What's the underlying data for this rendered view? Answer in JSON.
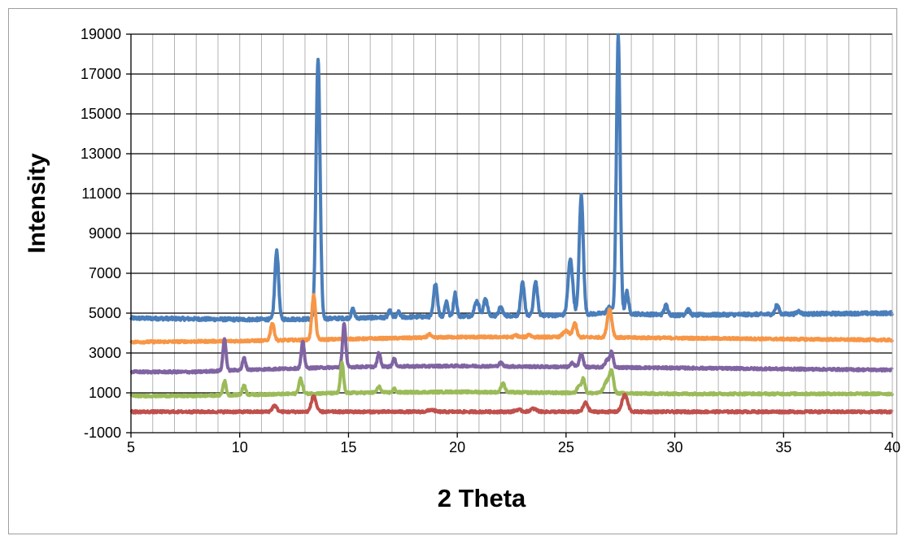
{
  "chart_data": {
    "type": "line",
    "title": "",
    "xlabel": "2 Theta",
    "ylabel": "Intensity",
    "xlim": [
      5,
      40
    ],
    "ylim": [
      -1000,
      19000
    ],
    "x_ticks": [
      5,
      10,
      15,
      20,
      25,
      30,
      35,
      40
    ],
    "y_ticks": [
      -1000,
      1000,
      3000,
      5000,
      7000,
      9000,
      11000,
      13000,
      15000,
      17000,
      19000
    ],
    "x_minor_step": 1,
    "grid": {
      "x_minor": true,
      "y_major": true
    },
    "legend": "none",
    "series": [
      {
        "color": "#4a7ebb",
        "baseline": [
          [
            5,
            4750
          ],
          [
            10,
            4680
          ],
          [
            13,
            4700
          ],
          [
            15,
            4750
          ],
          [
            20,
            4850
          ],
          [
            25,
            4900
          ],
          [
            27,
            5000
          ],
          [
            30,
            4900
          ],
          [
            35,
            4950
          ],
          [
            40,
            5000
          ]
        ],
        "peaks": [
          [
            11.7,
            8150,
            0.12
          ],
          [
            13.6,
            17750,
            0.13
          ],
          [
            15.2,
            5200,
            0.1
          ],
          [
            16.9,
            5100,
            0.1
          ],
          [
            17.3,
            5050,
            0.1
          ],
          [
            19.0,
            6500,
            0.12
          ],
          [
            19.5,
            5600,
            0.1
          ],
          [
            19.9,
            6000,
            0.1
          ],
          [
            20.9,
            5600,
            0.15
          ],
          [
            21.3,
            5750,
            0.12
          ],
          [
            22.0,
            5300,
            0.12
          ],
          [
            23.0,
            6500,
            0.12
          ],
          [
            23.6,
            6600,
            0.12
          ],
          [
            25.2,
            7700,
            0.15
          ],
          [
            25.7,
            10900,
            0.13
          ],
          [
            27.0,
            5300,
            0.15
          ],
          [
            27.4,
            18900,
            0.12
          ],
          [
            27.8,
            6100,
            0.1
          ],
          [
            29.6,
            5400,
            0.12
          ],
          [
            30.6,
            5200,
            0.12
          ],
          [
            34.7,
            5400,
            0.12
          ],
          [
            35.7,
            5100,
            0.12
          ]
        ]
      },
      {
        "color": "#f79646",
        "baseline": [
          [
            5,
            3550
          ],
          [
            10,
            3600
          ],
          [
            15,
            3700
          ],
          [
            20,
            3800
          ],
          [
            25,
            3800
          ],
          [
            30,
            3750
          ],
          [
            35,
            3700
          ],
          [
            40,
            3650
          ]
        ],
        "peaks": [
          [
            11.5,
            4500,
            0.12
          ],
          [
            13.4,
            5900,
            0.12
          ],
          [
            18.7,
            3950,
            0.1
          ],
          [
            22.7,
            3900,
            0.1
          ],
          [
            23.3,
            3950,
            0.1
          ],
          [
            25.0,
            4100,
            0.2
          ],
          [
            25.4,
            4500,
            0.12
          ],
          [
            27.0,
            5200,
            0.15
          ]
        ]
      },
      {
        "color": "#8064a2",
        "baseline": [
          [
            5,
            2050
          ],
          [
            8,
            2050
          ],
          [
            10,
            2150
          ],
          [
            15,
            2300
          ],
          [
            20,
            2350
          ],
          [
            25,
            2300
          ],
          [
            30,
            2250
          ],
          [
            35,
            2200
          ],
          [
            40,
            2150
          ]
        ],
        "peaks": [
          [
            9.3,
            3700,
            0.1
          ],
          [
            10.2,
            2750,
            0.1
          ],
          [
            12.9,
            3550,
            0.1
          ],
          [
            14.8,
            4500,
            0.1
          ],
          [
            16.4,
            3000,
            0.1
          ],
          [
            17.1,
            2700,
            0.1
          ],
          [
            22.0,
            2500,
            0.12
          ],
          [
            25.3,
            2500,
            0.12
          ],
          [
            25.7,
            2950,
            0.12
          ],
          [
            26.9,
            2650,
            0.15
          ],
          [
            27.1,
            3000,
            0.1
          ]
        ]
      },
      {
        "color": "#9bbb59",
        "baseline": [
          [
            5,
            850
          ],
          [
            8,
            850
          ],
          [
            10,
            900
          ],
          [
            15,
            1000
          ],
          [
            20,
            1050
          ],
          [
            25,
            1000
          ],
          [
            30,
            950
          ],
          [
            35,
            950
          ],
          [
            40,
            950
          ]
        ],
        "peaks": [
          [
            9.3,
            1600,
            0.1
          ],
          [
            10.2,
            1400,
            0.1
          ],
          [
            12.8,
            1700,
            0.12
          ],
          [
            14.7,
            2500,
            0.1
          ],
          [
            16.4,
            1300,
            0.12
          ],
          [
            17.1,
            1200,
            0.1
          ],
          [
            22.1,
            1500,
            0.12
          ],
          [
            25.6,
            1400,
            0.12
          ],
          [
            25.8,
            1700,
            0.1
          ],
          [
            26.9,
            1600,
            0.2
          ],
          [
            27.1,
            1900,
            0.12
          ]
        ]
      },
      {
        "color": "#c0504d",
        "baseline": [
          [
            5,
            50
          ],
          [
            40,
            50
          ]
        ],
        "peaks": [
          [
            11.6,
            350,
            0.15
          ],
          [
            13.4,
            850,
            0.15
          ],
          [
            18.8,
            150,
            0.2
          ],
          [
            22.8,
            150,
            0.2
          ],
          [
            23.5,
            200,
            0.2
          ],
          [
            25.9,
            500,
            0.15
          ],
          [
            27.7,
            900,
            0.18
          ]
        ]
      }
    ]
  }
}
